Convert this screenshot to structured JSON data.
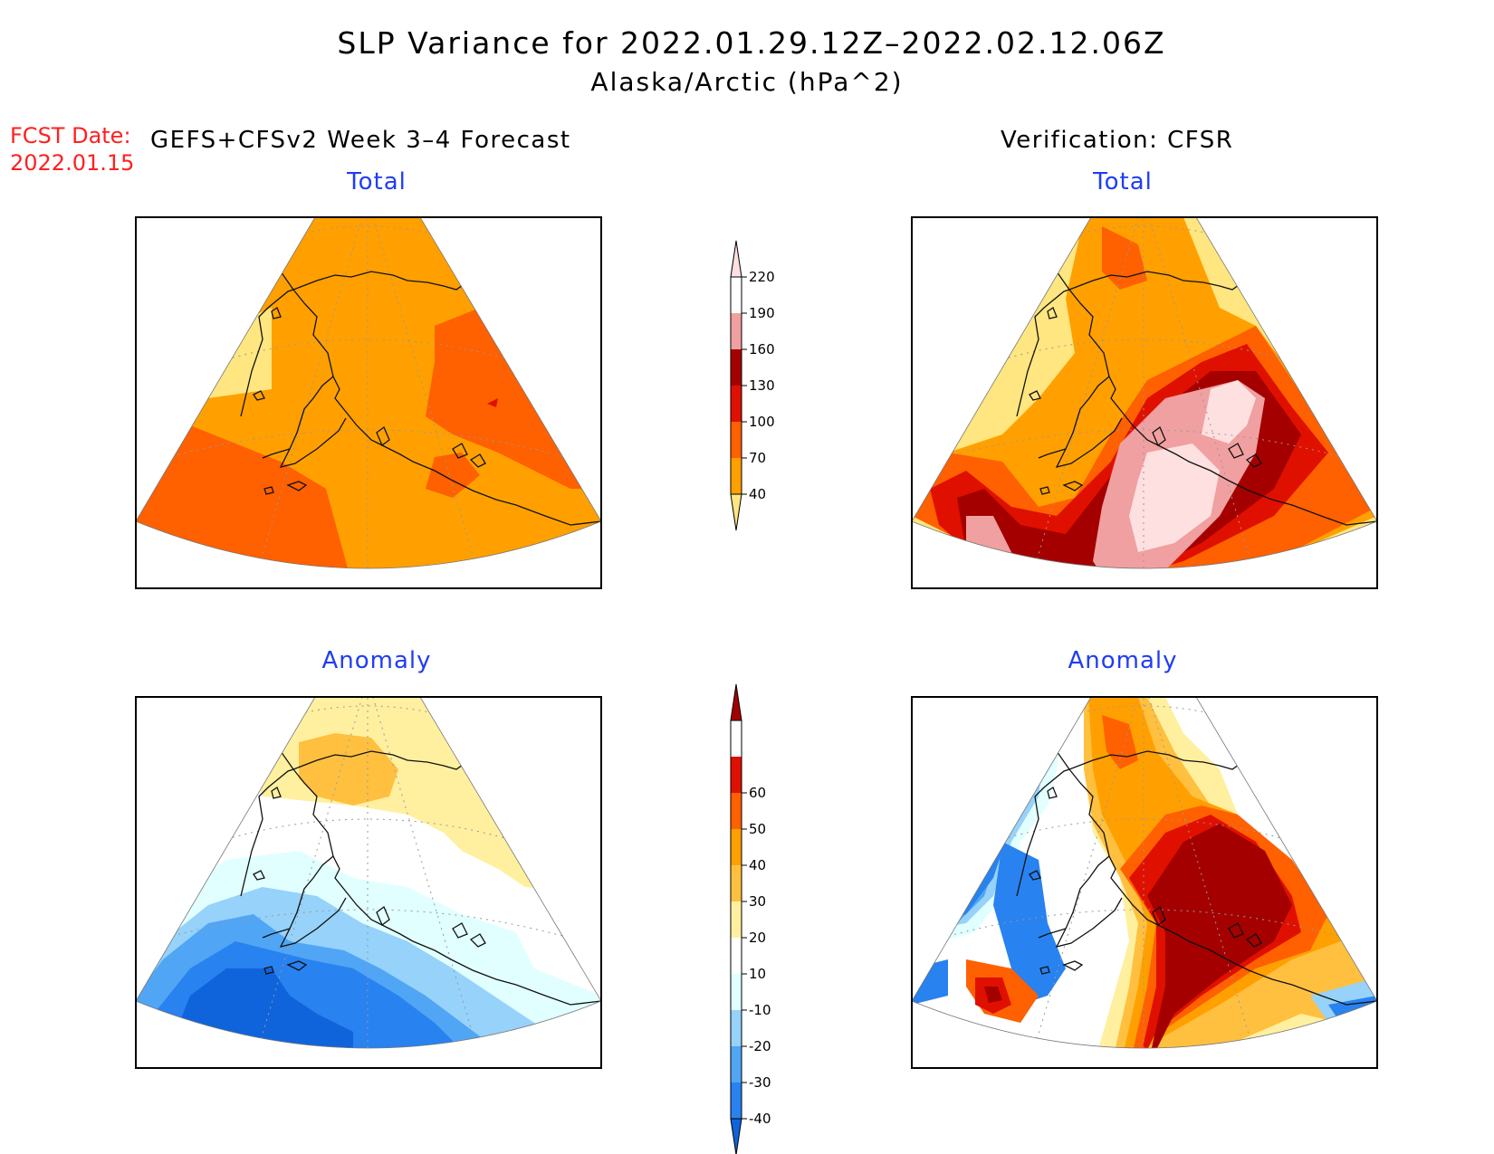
{
  "title": {
    "line1": "SLP Variance for 2022.01.29.12Z–2022.02.12.06Z",
    "line2": "Alaska/Arctic (hPa^2)"
  },
  "forecast": {
    "label": "FCST Date:",
    "date": "2022.01.15",
    "header": "GEFS+CFSv2 Week 3–4 Forecast"
  },
  "verification": {
    "header": "Verification: CFSR"
  },
  "panels": {
    "fc_total": "Total",
    "ver_total": "Total",
    "fc_anom": "Anomaly",
    "ver_anom": "Anomaly"
  },
  "total_scale": {
    "ticks": [
      "40",
      "70",
      "100",
      "130",
      "160",
      "190",
      "220"
    ],
    "colors": [
      "#ffe680",
      "#ffa000",
      "#ff6000",
      "#e01000",
      "#a50000",
      "#f0a0a0",
      "#ffe0e0"
    ]
  },
  "anomaly_scale": {
    "ticks": [
      "-40",
      "-30",
      "-20",
      "-10",
      "10",
      "20",
      "30",
      "40",
      "50",
      "60"
    ],
    "colors": [
      "#0f64dc",
      "#2882f0",
      "#50a5f5",
      "#96d2fa",
      "#e1ffff",
      "#ffffff",
      "#fff0a0",
      "#ffc040",
      "#ffa000",
      "#ff6000",
      "#e01000",
      "#a50000"
    ]
  }
}
